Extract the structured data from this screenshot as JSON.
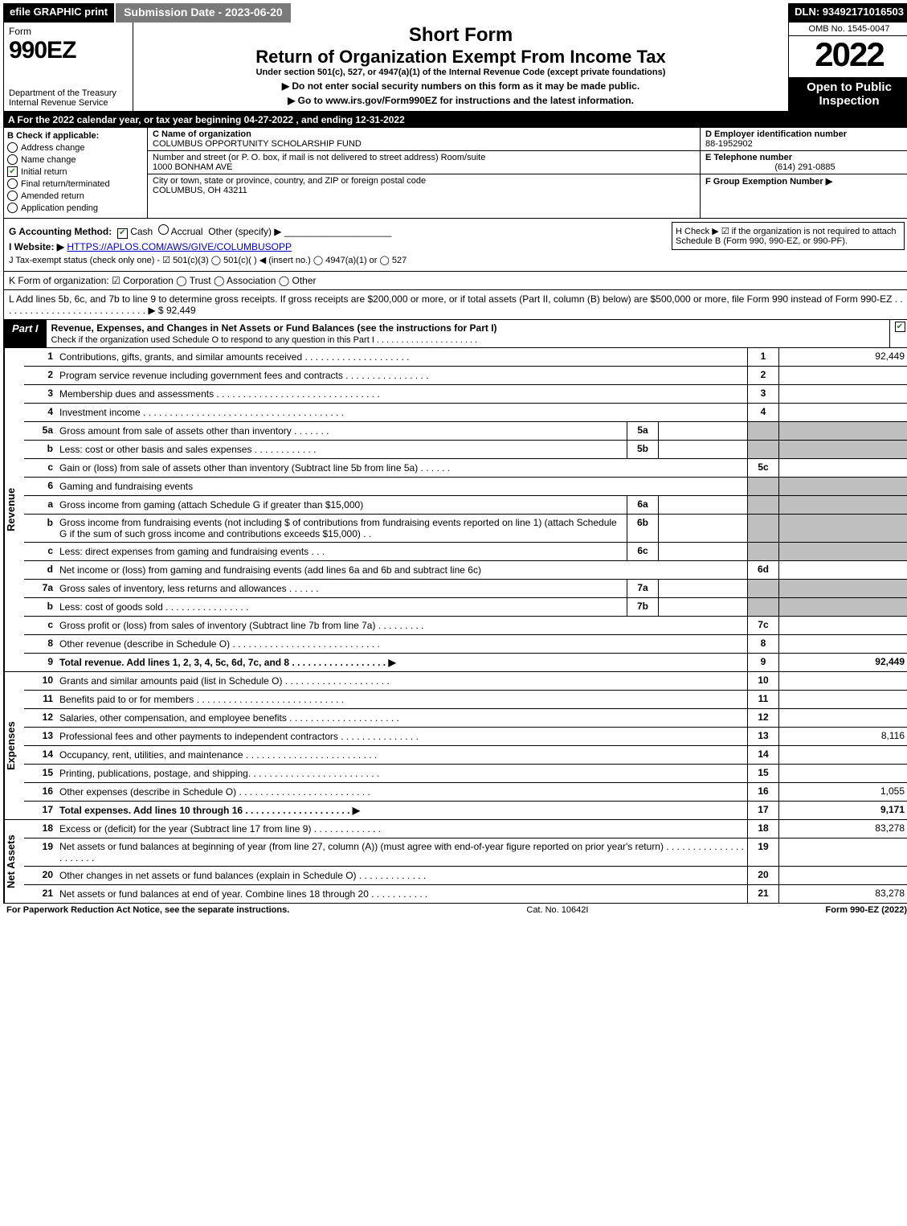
{
  "topbar": {
    "efile": "efile GRAPHIC print",
    "submission": "Submission Date - 2023-06-20",
    "dln": "DLN: 93492171016503"
  },
  "header": {
    "form_word": "Form",
    "form_num": "990EZ",
    "dept": "Department of the Treasury\nInternal Revenue Service",
    "short_form": "Short Form",
    "main_title": "Return of Organization Exempt From Income Tax",
    "under": "Under section 501(c), 527, or 4947(a)(1) of the Internal Revenue Code (except private foundations)",
    "warn": "▶ Do not enter social security numbers on this form as it may be made public.",
    "goto": "▶ Go to www.irs.gov/Form990EZ for instructions and the latest information.",
    "omb": "OMB No. 1545-0047",
    "year": "2022",
    "open": "Open to Public Inspection"
  },
  "sectionA": "A  For the 2022 calendar year, or tax year beginning 04-27-2022 , and ending 12-31-2022",
  "B": {
    "title": "B  Check if applicable:",
    "items": [
      {
        "label": "Address change",
        "checked": false,
        "round": true
      },
      {
        "label": "Name change",
        "checked": false,
        "round": true
      },
      {
        "label": "Initial return",
        "checked": true,
        "round": false
      },
      {
        "label": "Final return/terminated",
        "checked": false,
        "round": true
      },
      {
        "label": "Amended return",
        "checked": false,
        "round": true
      },
      {
        "label": "Application pending",
        "checked": false,
        "round": true
      }
    ]
  },
  "C": {
    "name_label": "C Name of organization",
    "name": "COLUMBUS OPPORTUNITY SCHOLARSHIP FUND",
    "street_label": "Number and street (or P. O. box, if mail is not delivered to street address)      Room/suite",
    "street": "1000 BONHAM AVE",
    "city_label": "City or town, state or province, country, and ZIP or foreign postal code",
    "city": "COLUMBUS, OH  43211"
  },
  "D": {
    "label": "D Employer identification number",
    "value": "88-1952902"
  },
  "E": {
    "label": "E Telephone number",
    "value": "(614) 291-0885"
  },
  "F": {
    "label": "F Group Exemption Number  ▶",
    "value": ""
  },
  "G": {
    "label": "G Accounting Method:",
    "cash": "Cash",
    "accrual": "Accrual",
    "other": "Other (specify) ▶"
  },
  "H": "H  Check ▶ ☑ if the organization is not required to attach Schedule B (Form 990, 990-EZ, or 990-PF).",
  "I": {
    "label": "I Website: ▶",
    "value": "HTTPS://APLOS.COM/AWS/GIVE/COLUMBUSOPP"
  },
  "J": "J Tax-exempt status (check only one) - ☑ 501(c)(3)  ◯ 501(c)(  ) ◀ (insert no.)  ◯ 4947(a)(1) or  ◯ 527",
  "K": "K Form of organization:  ☑ Corporation  ◯ Trust  ◯ Association  ◯ Other",
  "L": {
    "text": "L Add lines 5b, 6c, and 7b to line 9 to determine gross receipts. If gross receipts are $200,000 or more, or if total assets (Part II, column (B) below) are $500,000 or more, file Form 990 instead of Form 990-EZ . . . . . . . . . . . . . . . . . . . . . . . . . . . . ▶ $",
    "value": "92,449"
  },
  "partI": {
    "label": "Part I",
    "title": "Revenue, Expenses, and Changes in Net Assets or Fund Balances (see the instructions for Part I)",
    "sub": "Check if the organization used Schedule O to respond to any question in this Part I . . . . . . . . . . . . . . . . . . . . ."
  },
  "sections": {
    "revenue": "Revenue",
    "expenses": "Expenses",
    "netassets": "Net Assets"
  },
  "lines": {
    "l1": {
      "n": "1",
      "d": "Contributions, gifts, grants, and similar amounts received . . . . . . . . . . . . . . . . . . . .",
      "r": "1",
      "v": "92,449"
    },
    "l2": {
      "n": "2",
      "d": "Program service revenue including government fees and contracts . . . . . . . . . . . . . . . .",
      "r": "2",
      "v": ""
    },
    "l3": {
      "n": "3",
      "d": "Membership dues and assessments . . . . . . . . . . . . . . . . . . . . . . . . . . . . . . .",
      "r": "3",
      "v": ""
    },
    "l4": {
      "n": "4",
      "d": "Investment income . . . . . . . . . . . . . . . . . . . . . . . . . . . . . . . . . . . . . .",
      "r": "4",
      "v": ""
    },
    "l5a": {
      "n": "5a",
      "d": "Gross amount from sale of assets other than inventory . . . . . . .",
      "s": "5a"
    },
    "l5b": {
      "n": "b",
      "d": "Less: cost or other basis and sales expenses . . . . . . . . . . . .",
      "s": "5b"
    },
    "l5c": {
      "n": "c",
      "d": "Gain or (loss) from sale of assets other than inventory (Subtract line 5b from line 5a) . . . . . .",
      "r": "5c",
      "v": ""
    },
    "l6": {
      "n": "6",
      "d": "Gaming and fundraising events"
    },
    "l6a": {
      "n": "a",
      "d": "Gross income from gaming (attach Schedule G if greater than $15,000)",
      "s": "6a"
    },
    "l6b": {
      "n": "b",
      "d": "Gross income from fundraising events (not including $                    of contributions from fundraising events reported on line 1) (attach Schedule G if the sum of such gross income and contributions exceeds $15,000)   .  .",
      "s": "6b"
    },
    "l6c": {
      "n": "c",
      "d": "Less: direct expenses from gaming and fundraising events   .  .  .",
      "s": "6c"
    },
    "l6d": {
      "n": "d",
      "d": "Net income or (loss) from gaming and fundraising events (add lines 6a and 6b and subtract line 6c)",
      "r": "6d",
      "v": ""
    },
    "l7a": {
      "n": "7a",
      "d": "Gross sales of inventory, less returns and allowances . . . . . .",
      "s": "7a"
    },
    "l7b": {
      "n": "b",
      "d": "Less: cost of goods sold       . . . . . . . . . . . . . . . .",
      "s": "7b"
    },
    "l7c": {
      "n": "c",
      "d": "Gross profit or (loss) from sales of inventory (Subtract line 7b from line 7a) . . . . . . . . .",
      "r": "7c",
      "v": ""
    },
    "l8": {
      "n": "8",
      "d": "Other revenue (describe in Schedule O) . . . . . . . . . . . . . . . . . . . . . . . . . . . .",
      "r": "8",
      "v": ""
    },
    "l9": {
      "n": "9",
      "d": "Total revenue. Add lines 1, 2, 3, 4, 5c, 6d, 7c, and 8  . . . . . . . . . . . . . . . . . .  ▶",
      "r": "9",
      "v": "92,449",
      "bold": true
    },
    "l10": {
      "n": "10",
      "d": "Grants and similar amounts paid (list in Schedule O) . . . . . . . . . . . . . . . . . . . .",
      "r": "10",
      "v": ""
    },
    "l11": {
      "n": "11",
      "d": "Benefits paid to or for members      . . . . . . . . . . . . . . . . . . . . . . . . . . . .",
      "r": "11",
      "v": ""
    },
    "l12": {
      "n": "12",
      "d": "Salaries, other compensation, and employee benefits . . . . . . . . . . . . . . . . . . . . .",
      "r": "12",
      "v": ""
    },
    "l13": {
      "n": "13",
      "d": "Professional fees and other payments to independent contractors . . . . . . . . . . . . . . .",
      "r": "13",
      "v": "8,116"
    },
    "l14": {
      "n": "14",
      "d": "Occupancy, rent, utilities, and maintenance . . . . . . . . . . . . . . . . . . . . . . . . .",
      "r": "14",
      "v": ""
    },
    "l15": {
      "n": "15",
      "d": "Printing, publications, postage, and shipping. . . . . . . . . . . . . . . . . . . . . . . . .",
      "r": "15",
      "v": ""
    },
    "l16": {
      "n": "16",
      "d": "Other expenses (describe in Schedule O)    . . . . . . . . . . . . . . . . . . . . . . . . .",
      "r": "16",
      "v": "1,055"
    },
    "l17": {
      "n": "17",
      "d": "Total expenses. Add lines 10 through 16      . . . . . . . . . . . . . . . . . . . .  ▶",
      "r": "17",
      "v": "9,171",
      "bold": true
    },
    "l18": {
      "n": "18",
      "d": "Excess or (deficit) for the year (Subtract line 17 from line 9)       . . . . . . . . . . . . .",
      "r": "18",
      "v": "83,278"
    },
    "l19": {
      "n": "19",
      "d": "Net assets or fund balances at beginning of year (from line 27, column (A)) (must agree with end-of-year figure reported on prior year's return) . . . . . . . . . . . . . . . . . . . . . .",
      "r": "19",
      "v": ""
    },
    "l20": {
      "n": "20",
      "d": "Other changes in net assets or fund balances (explain in Schedule O) . . . . . . . . . . . . .",
      "r": "20",
      "v": ""
    },
    "l21": {
      "n": "21",
      "d": "Net assets or fund balances at end of year. Combine lines 18 through 20 . . . . . . . . . . .",
      "r": "21",
      "v": "83,278"
    }
  },
  "footer": {
    "left": "For Paperwork Reduction Act Notice, see the separate instructions.",
    "mid": "Cat. No. 10642I",
    "right": "Form 990-EZ (2022)"
  }
}
